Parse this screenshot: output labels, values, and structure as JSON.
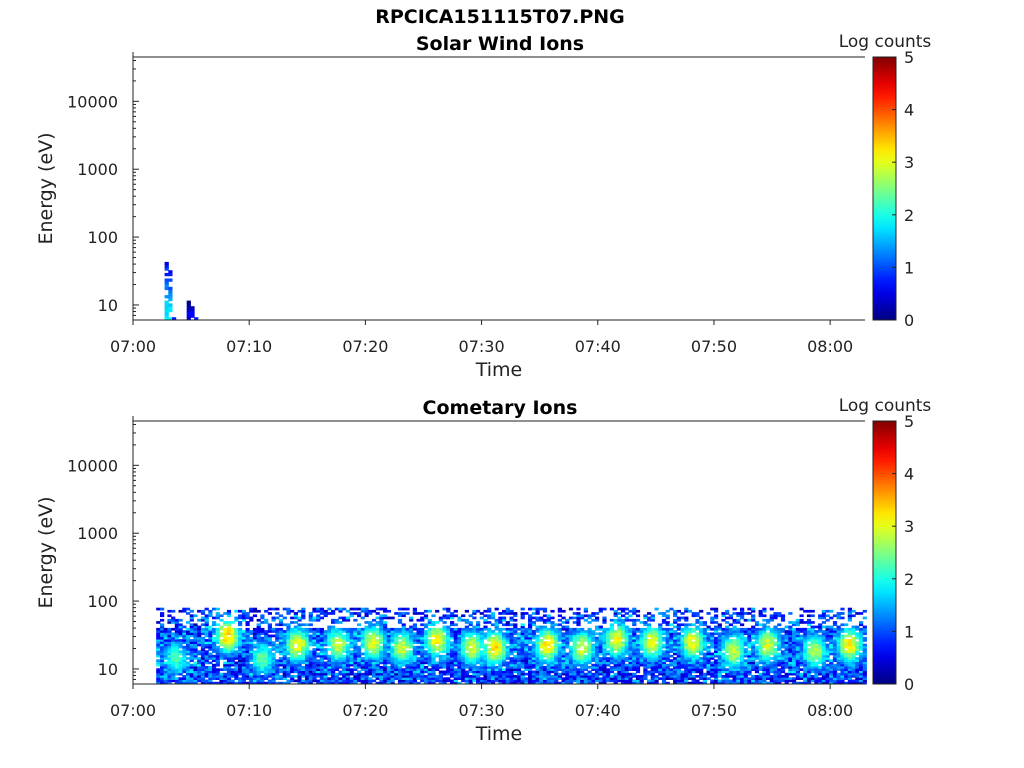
{
  "figure": {
    "title": "RPCICA151115T07.PNG"
  },
  "chart_data": [
    {
      "type": "heatmap",
      "title": "Solar Wind Ions",
      "xlabel": "Time",
      "ylabel": "Energy (eV)",
      "xlim": [
        "07:00",
        "08:03"
      ],
      "ylim": [
        6,
        45000
      ],
      "y_scale": "log",
      "x_ticks": [
        "07:00",
        "07:10",
        "07:20",
        "07:30",
        "07:40",
        "07:50",
        "08:00"
      ],
      "y_ticks": [
        "10",
        "100",
        "1000",
        "10000"
      ],
      "colorbar": {
        "label": "Log counts",
        "range": [
          0,
          5
        ],
        "ticks": [
          "0",
          "1",
          "2",
          "3",
          "4",
          "5"
        ]
      },
      "patches": [
        {
          "t_start": 2.4,
          "t_end": 3.5,
          "e_min": 6,
          "e_max": 50,
          "log_counts": 1.6
        },
        {
          "t_start": 4.3,
          "t_end": 5.5,
          "e_min": 6,
          "e_max": 12,
          "log_counts": 0.5
        }
      ]
    },
    {
      "type": "heatmap",
      "title": "Cometary Ions",
      "xlabel": "Time",
      "ylabel": "Energy (eV)",
      "xlim": [
        "07:00",
        "08:03"
      ],
      "ylim": [
        6,
        45000
      ],
      "y_scale": "log",
      "x_ticks": [
        "07:00",
        "07:10",
        "07:20",
        "07:30",
        "07:40",
        "07:50",
        "08:00"
      ],
      "y_ticks": [
        "10",
        "100",
        "1000",
        "10000"
      ],
      "colorbar": {
        "label": "Log counts",
        "range": [
          0,
          5
        ],
        "ticks": [
          "0",
          "1",
          "2",
          "3",
          "4",
          "5"
        ]
      },
      "data_time_range": [
        "07:02",
        "08:03"
      ],
      "energy_max": 80,
      "peaks": [
        {
          "time_min": 3.5,
          "energy": 14,
          "log_counts": 2.3
        },
        {
          "time_min": 8.0,
          "energy": 30,
          "log_counts": 3.4
        },
        {
          "time_min": 11.0,
          "energy": 14,
          "log_counts": 2.4
        },
        {
          "time_min": 14.0,
          "energy": 22,
          "log_counts": 3.1
        },
        {
          "time_min": 17.5,
          "energy": 22,
          "log_counts": 2.9
        },
        {
          "time_min": 20.5,
          "energy": 24,
          "log_counts": 3.0
        },
        {
          "time_min": 23.0,
          "energy": 20,
          "log_counts": 2.9
        },
        {
          "time_min": 26.0,
          "energy": 26,
          "log_counts": 3.2
        },
        {
          "time_min": 29.0,
          "energy": 20,
          "log_counts": 3.0
        },
        {
          "time_min": 31.0,
          "energy": 20,
          "log_counts": 3.3
        },
        {
          "time_min": 35.5,
          "energy": 22,
          "log_counts": 3.3
        },
        {
          "time_min": 38.5,
          "energy": 20,
          "log_counts": 3.0
        },
        {
          "time_min": 41.5,
          "energy": 26,
          "log_counts": 3.1
        },
        {
          "time_min": 44.5,
          "energy": 24,
          "log_counts": 3.1
        },
        {
          "time_min": 48.0,
          "energy": 24,
          "log_counts": 3.1
        },
        {
          "time_min": 51.5,
          "energy": 18,
          "log_counts": 2.9
        },
        {
          "time_min": 54.5,
          "energy": 22,
          "log_counts": 3.0
        },
        {
          "time_min": 58.5,
          "energy": 18,
          "log_counts": 2.8
        },
        {
          "time_min": 61.5,
          "energy": 22,
          "log_counts": 3.2
        }
      ]
    }
  ]
}
